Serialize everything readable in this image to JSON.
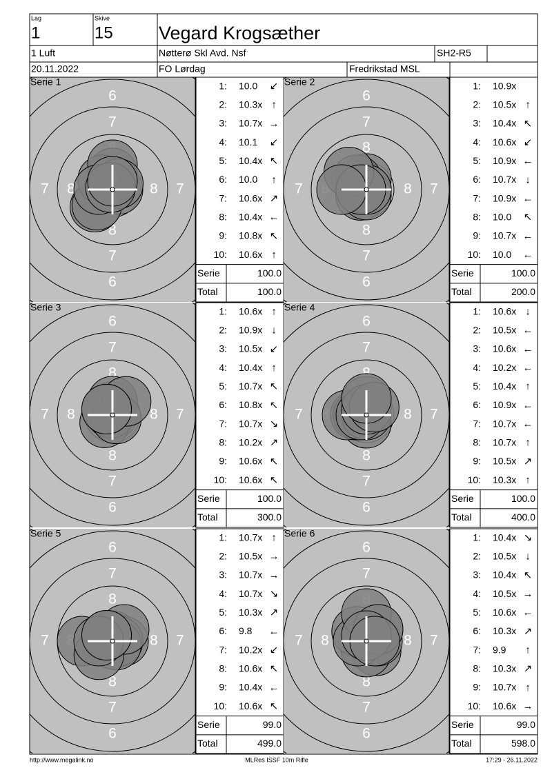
{
  "header": {
    "lag_label": "Lag",
    "lag": "1",
    "skive_label": "Skive",
    "skive": "15",
    "name": "Vegard Krogsæther",
    "class": "1 Luft",
    "club": "Nøtterø Skl Avd. Nsf",
    "code": "SH2-R5",
    "date": "20.11.2022",
    "event": "FO Lørdag",
    "place": "Fredrikstad MSL"
  },
  "target": {
    "ring_labels": [
      "6",
      "7",
      "8"
    ]
  },
  "series": [
    {
      "title": "Serie 1",
      "serie_label": "Serie",
      "serie": "100.0",
      "total_label": "Total",
      "total": "100.0",
      "shots": [
        {
          "n": "1:",
          "score": "10.0",
          "arrow": "↙"
        },
        {
          "n": "2:",
          "score": "10.3x",
          "arrow": "↑"
        },
        {
          "n": "3:",
          "score": "10.7x",
          "arrow": "→"
        },
        {
          "n": "4:",
          "score": "10.1",
          "arrow": "↙"
        },
        {
          "n": "5:",
          "score": "10.4x",
          "arrow": "↖"
        },
        {
          "n": "6:",
          "score": "10.0",
          "arrow": "↑"
        },
        {
          "n": "7:",
          "score": "10.6x",
          "arrow": "↗"
        },
        {
          "n": "8:",
          "score": "10.4x",
          "arrow": "←"
        },
        {
          "n": "9:",
          "score": "10.8x",
          "arrow": "↖"
        },
        {
          "n": "10:",
          "score": "10.6x",
          "arrow": "↑"
        }
      ]
    },
    {
      "title": "Serie 2",
      "serie_label": "Serie",
      "serie": "100.0",
      "total_label": "Total",
      "total": "200.0",
      "shots": [
        {
          "n": "1:",
          "score": "10.9x"
        },
        {
          "n": "2:",
          "score": "10.5x",
          "arrow": "↑"
        },
        {
          "n": "3:",
          "score": "10.4x",
          "arrow": "↖"
        },
        {
          "n": "4:",
          "score": "10.6x",
          "arrow": "↙"
        },
        {
          "n": "5:",
          "score": "10.9x",
          "arrow": "←"
        },
        {
          "n": "6:",
          "score": "10.7x",
          "arrow": "↓"
        },
        {
          "n": "7:",
          "score": "10.9x",
          "arrow": "←"
        },
        {
          "n": "8:",
          "score": "10.0",
          "arrow": "↖"
        },
        {
          "n": "9:",
          "score": "10.7x",
          "arrow": "←"
        },
        {
          "n": "10:",
          "score": "10.0",
          "arrow": "←"
        }
      ]
    },
    {
      "title": "Serie 3",
      "serie_label": "Serie",
      "serie": "100.0",
      "total_label": "Total",
      "total": "300.0",
      "shots": [
        {
          "n": "1:",
          "score": "10.6x",
          "arrow": "↑"
        },
        {
          "n": "2:",
          "score": "10.9x",
          "arrow": "↓"
        },
        {
          "n": "3:",
          "score": "10.5x",
          "arrow": "↙"
        },
        {
          "n": "4:",
          "score": "10.4x",
          "arrow": "↑"
        },
        {
          "n": "5:",
          "score": "10.7x",
          "arrow": "↖"
        },
        {
          "n": "6:",
          "score": "10.8x",
          "arrow": "↖"
        },
        {
          "n": "7:",
          "score": "10.7x",
          "arrow": "↘"
        },
        {
          "n": "8:",
          "score": "10.2x",
          "arrow": "↗"
        },
        {
          "n": "9:",
          "score": "10.6x",
          "arrow": "↖"
        },
        {
          "n": "10:",
          "score": "10.6x",
          "arrow": "↖"
        }
      ]
    },
    {
      "title": "Serie 4",
      "serie_label": "Serie",
      "serie": "100.0",
      "total_label": "Total",
      "total": "400.0",
      "shots": [
        {
          "n": "1:",
          "score": "10.6x",
          "arrow": "↓"
        },
        {
          "n": "2:",
          "score": "10.5x",
          "arrow": "←"
        },
        {
          "n": "3:",
          "score": "10.6x",
          "arrow": "←"
        },
        {
          "n": "4:",
          "score": "10.2x",
          "arrow": "←"
        },
        {
          "n": "5:",
          "score": "10.4x",
          "arrow": "↑"
        },
        {
          "n": "6:",
          "score": "10.9x",
          "arrow": "←"
        },
        {
          "n": "7:",
          "score": "10.7x",
          "arrow": "←"
        },
        {
          "n": "8:",
          "score": "10.7x",
          "arrow": "↑"
        },
        {
          "n": "9:",
          "score": "10.5x",
          "arrow": "↗"
        },
        {
          "n": "10:",
          "score": "10.3x",
          "arrow": "↑"
        }
      ]
    },
    {
      "title": "Serie 5",
      "serie_label": "Serie",
      "serie": "99.0",
      "total_label": "Total",
      "total": "499.0",
      "shots": [
        {
          "n": "1:",
          "score": "10.7x",
          "arrow": "↑"
        },
        {
          "n": "2:",
          "score": "10.5x",
          "arrow": "→"
        },
        {
          "n": "3:",
          "score": "10.7x",
          "arrow": "→"
        },
        {
          "n": "4:",
          "score": "10.7x",
          "arrow": "↘"
        },
        {
          "n": "5:",
          "score": "10.3x",
          "arrow": "↗"
        },
        {
          "n": "6:",
          "score": "9.8",
          "arrow": "←"
        },
        {
          "n": "7:",
          "score": "10.2x",
          "arrow": "↙"
        },
        {
          "n": "8:",
          "score": "10.6x",
          "arrow": "↖"
        },
        {
          "n": "9:",
          "score": "10.4x",
          "arrow": "←"
        },
        {
          "n": "10:",
          "score": "10.6x",
          "arrow": "↖"
        }
      ]
    },
    {
      "title": "Serie 6",
      "serie_label": "Serie",
      "serie": "99.0",
      "total_label": "Total",
      "total": "598.0",
      "shots": [
        {
          "n": "1:",
          "score": "10.4x",
          "arrow": "↘"
        },
        {
          "n": "2:",
          "score": "10.5x",
          "arrow": "↓"
        },
        {
          "n": "3:",
          "score": "10.4x",
          "arrow": "↖"
        },
        {
          "n": "4:",
          "score": "10.5x",
          "arrow": "→"
        },
        {
          "n": "5:",
          "score": "10.6x",
          "arrow": "←"
        },
        {
          "n": "6:",
          "score": "10.3x",
          "arrow": "↗"
        },
        {
          "n": "7:",
          "score": "9.9",
          "arrow": "↑"
        },
        {
          "n": "8:",
          "score": "10.3x",
          "arrow": "↗"
        },
        {
          "n": "9:",
          "score": "10.7x",
          "arrow": "↑"
        },
        {
          "n": "10:",
          "score": "10.6x",
          "arrow": "→"
        }
      ]
    }
  ],
  "footer": {
    "left": "http://www.megalink.no",
    "center": "MLRes ISSF 10m Rifle",
    "right": "17:29 - 26.11.2022"
  }
}
